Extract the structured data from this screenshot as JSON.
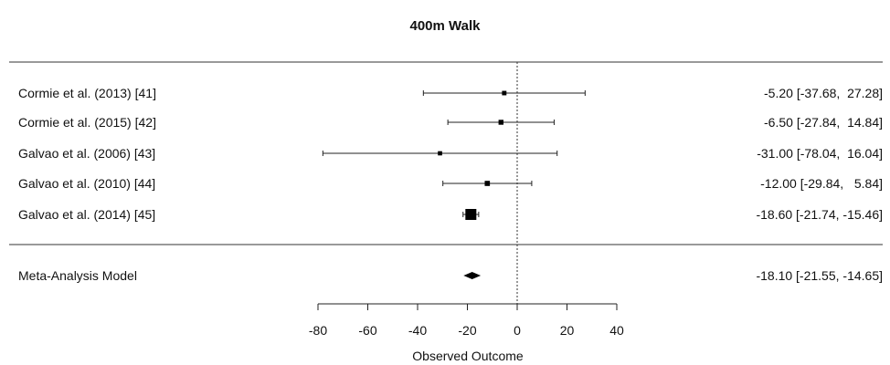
{
  "chart_data": {
    "type": "forest",
    "title": "400m Walk",
    "xlabel": "Observed Outcome",
    "xlim": [
      -80,
      40
    ],
    "xticks": [
      -80,
      -60,
      -40,
      -20,
      0,
      20,
      40
    ],
    "xtick_labels": [
      "-80",
      "-60",
      "-40",
      "-20",
      "0",
      "20",
      "40"
    ],
    "reference_line": 0,
    "studies": [
      {
        "label": "Cormie et al. (2013) [41]",
        "estimate": -5.2,
        "ci": [
          -37.68,
          27.28
        ],
        "ci_text": "-5.20 [-37.68,  27.28]",
        "weight": 1.1
      },
      {
        "label": "Cormie et al. (2015) [42]",
        "estimate": -6.5,
        "ci": [
          -27.84,
          14.84
        ],
        "ci_text": "-6.50 [-27.84,  14.84]",
        "weight": 2.7
      },
      {
        "label": "Galvao et al. (2006) [43]",
        "estimate": -31.0,
        "ci": [
          -78.04,
          16.04
        ],
        "ci_text": "-31.00 [-78.04,  16.04]",
        "weight": 0.6
      },
      {
        "label": "Galvao et al. (2010) [44]",
        "estimate": -12.0,
        "ci": [
          -29.84,
          5.84
        ],
        "ci_text": "-12.00 [-29.84,   5.84]",
        "weight": 3.8
      },
      {
        "label": "Galvao et al. (2014) [45]",
        "estimate": -18.6,
        "ci": [
          -21.74,
          -15.46
        ],
        "ci_text": "-18.60 [-21.74, -15.46]",
        "weight": 91.8
      }
    ],
    "summary": {
      "label": "Meta-Analysis Model",
      "estimate": -18.1,
      "ci": [
        -21.55,
        -14.65
      ],
      "ci_text": "-18.10 [-21.55, -14.65]"
    }
  }
}
